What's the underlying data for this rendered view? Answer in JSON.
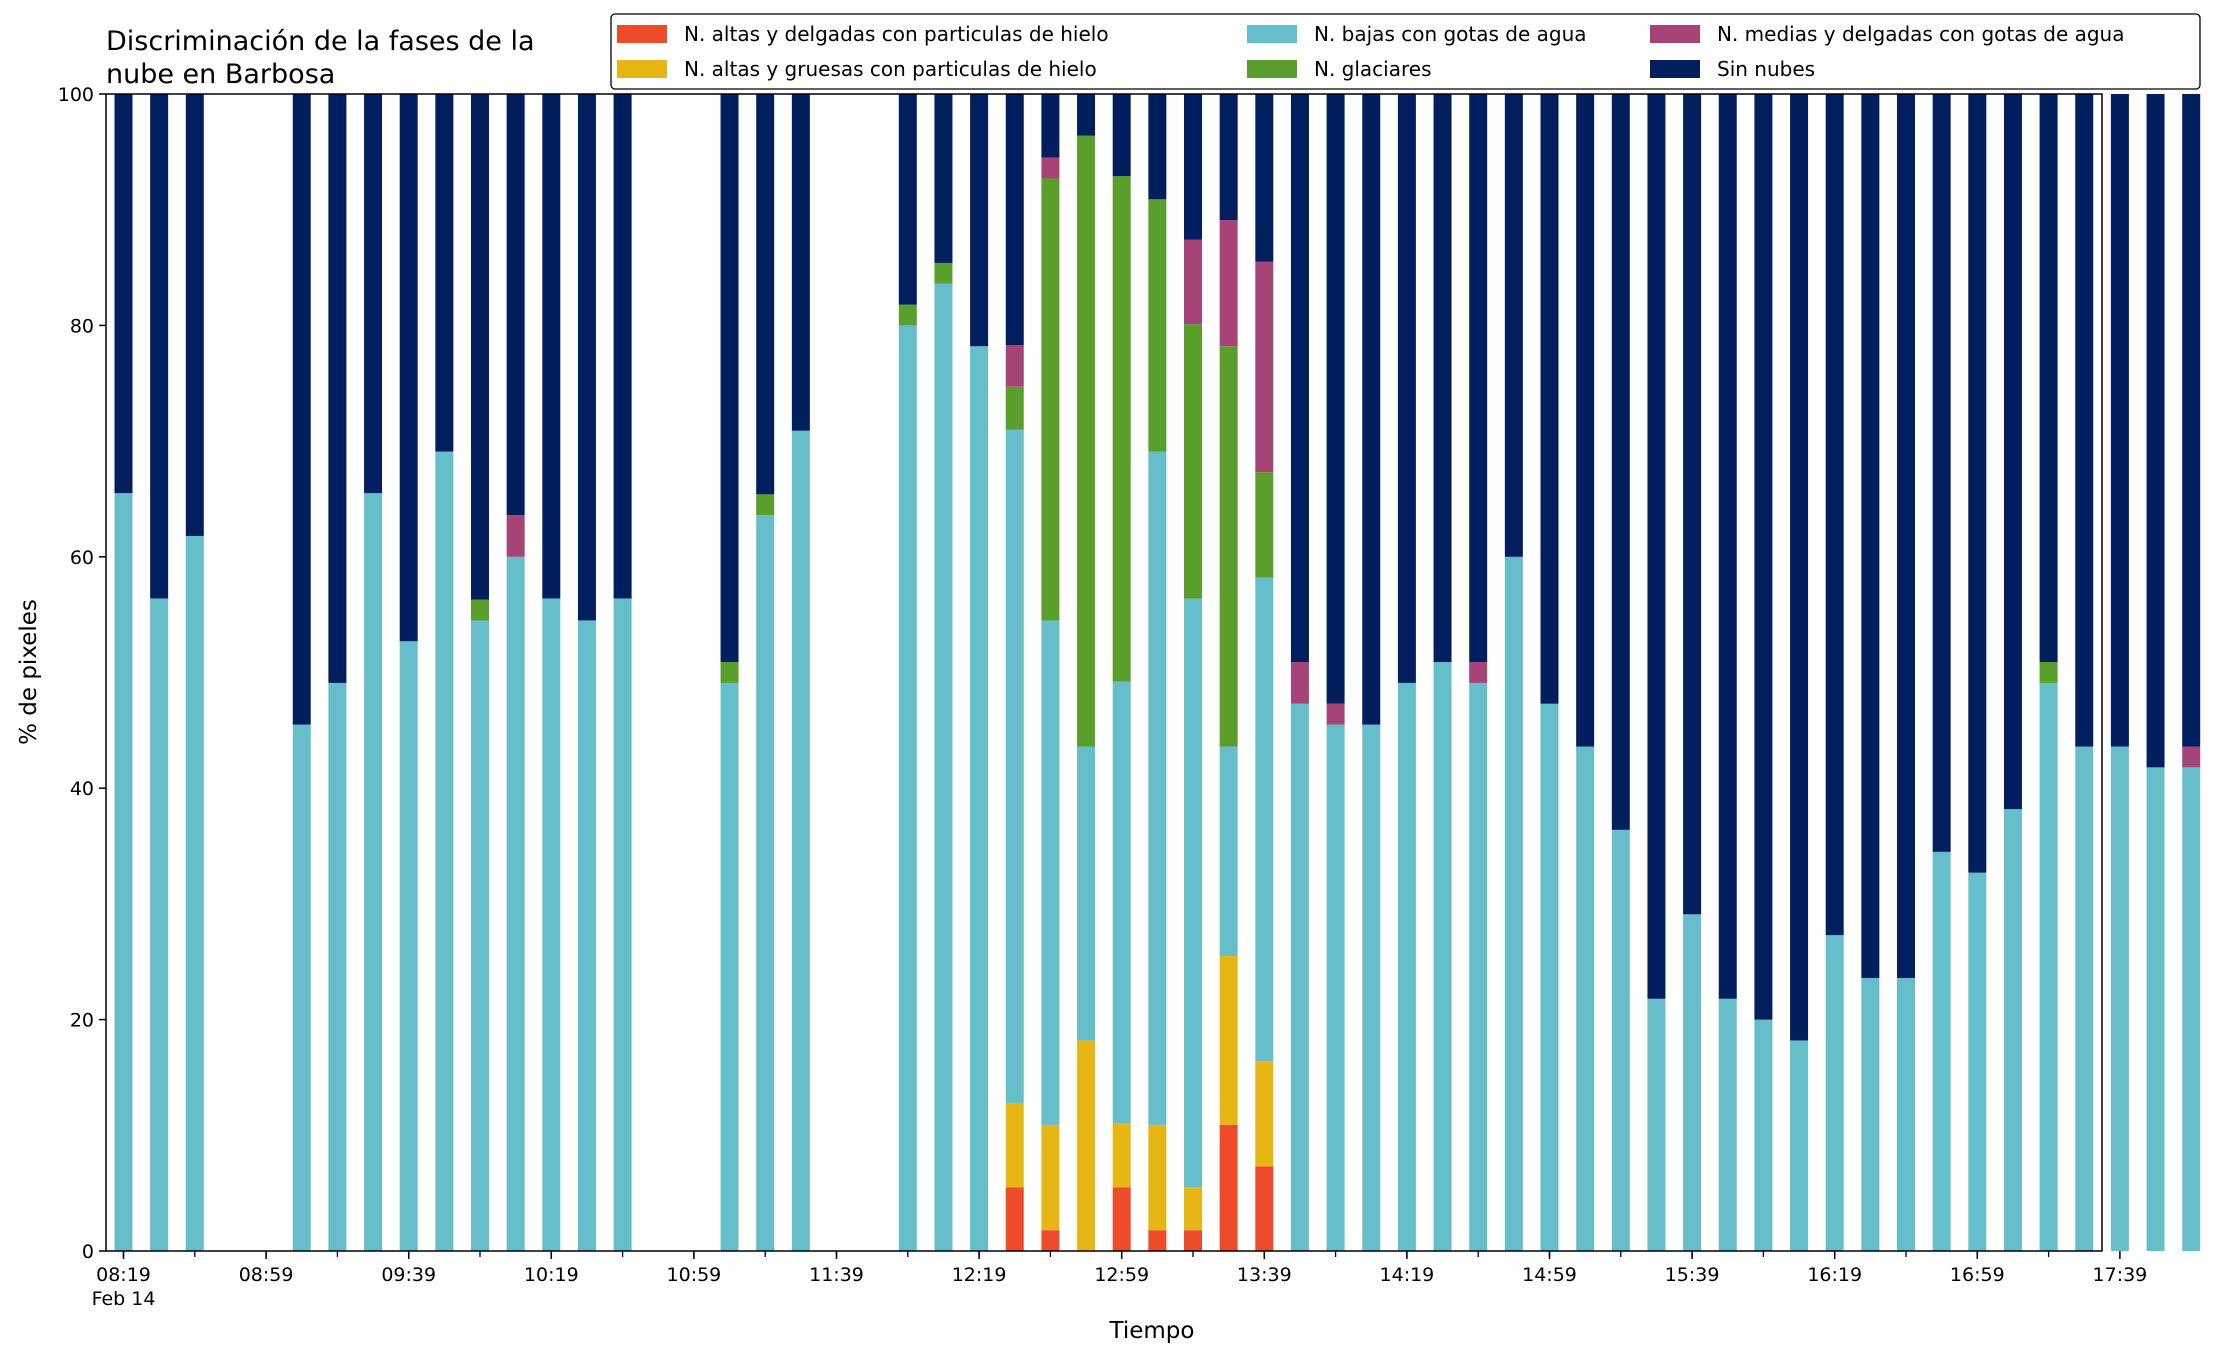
{
  "chart_data": {
    "type": "bar",
    "stacked": true,
    "title": [
      "Discriminación de la fases de la",
      "nube en Barbosa"
    ],
    "xlabel": "Tiempo",
    "ylabel": "% de pixeles",
    "ylim": [
      0,
      100
    ],
    "yticks": [
      0,
      20,
      40,
      60,
      80,
      100
    ],
    "x_start": "08:19",
    "x_step_minutes": 10,
    "x_count": 59,
    "xtick_labels": [
      "08:19",
      "08:59",
      "09:39",
      "10:19",
      "10:59",
      "11:39",
      "12:19",
      "12:59",
      "13:39",
      "14:19",
      "14:59",
      "15:39",
      "16:19",
      "16:59",
      "17:39"
    ],
    "xtick_sublabel": "Feb 14",
    "legend": {
      "placement": "top",
      "columns": 3
    },
    "series": [
      {
        "name": "N. altas y delgadas con particulas de hielo",
        "color": "#ee4b2b",
        "values": [
          0,
          0,
          0,
          0,
          0,
          0,
          0,
          0,
          0,
          0,
          0,
          0,
          0,
          0,
          0,
          0,
          0,
          0,
          0,
          0,
          0,
          0,
          0,
          0,
          0,
          5.5,
          1.8,
          0,
          5.5,
          1.8,
          1.8,
          10.9,
          7.3,
          0,
          0,
          0,
          0,
          0,
          0,
          0,
          0,
          0,
          0,
          0,
          0,
          0,
          0,
          0,
          0,
          0,
          0,
          0,
          0,
          0,
          0,
          0,
          0,
          0,
          0
        ]
      },
      {
        "name": "N. altas y gruesas con particulas de hielo",
        "color": "#e6b714",
        "values": [
          0,
          0,
          0,
          0,
          0,
          0,
          0,
          0,
          0,
          0,
          0,
          0,
          0,
          0,
          0,
          0,
          0,
          0,
          0,
          0,
          0,
          0,
          0,
          0,
          0,
          7.3,
          9.1,
          18.2,
          5.5,
          9.1,
          3.7,
          14.6,
          9.1,
          0,
          0,
          0,
          0,
          0,
          0,
          0,
          0,
          0,
          0,
          0,
          0,
          0,
          0,
          0,
          0,
          0,
          0,
          0,
          0,
          0,
          0,
          0,
          0,
          0,
          0
        ]
      },
      {
        "name": "N. bajas con gotas de agua",
        "color": "#65bec9",
        "values": [
          65.5,
          56.4,
          61.8,
          0,
          0,
          45.5,
          49.1,
          65.5,
          52.7,
          69.1,
          54.5,
          60,
          56.4,
          54.5,
          56.4,
          0,
          0,
          49.1,
          63.6,
          70.9,
          0,
          0,
          80,
          83.6,
          78.2,
          58.2,
          43.6,
          25.4,
          38.2,
          58.2,
          50.9,
          18.1,
          41.8,
          47.3,
          45.5,
          45.5,
          49.1,
          50.9,
          49.1,
          60,
          47.3,
          43.6,
          36.4,
          21.8,
          29.1,
          21.8,
          20,
          18.2,
          27.3,
          23.6,
          23.6,
          34.5,
          32.7,
          38.2,
          49.1,
          43.6,
          43.6,
          41.8,
          41.8
        ]
      },
      {
        "name": "N. glaciares",
        "color": "#5a9e2c",
        "values": [
          0,
          0,
          0,
          0,
          0,
          0,
          0,
          0,
          0,
          0,
          1.8,
          0,
          0,
          0,
          0,
          0,
          0,
          1.8,
          1.8,
          0,
          0,
          0,
          1.8,
          1.8,
          0,
          3.7,
          38.2,
          52.8,
          43.7,
          21.8,
          23.7,
          34.6,
          9.1,
          0,
          0,
          0,
          0,
          0,
          0,
          0,
          0,
          0,
          0,
          0,
          0,
          0,
          0,
          0,
          0,
          0,
          0,
          0,
          0,
          0,
          1.8,
          0,
          0,
          0,
          0
        ]
      },
      {
        "name": "N. medias y delgadas con gotas de agua",
        "color": "#a64477",
        "values": [
          0,
          0,
          0,
          0,
          0,
          0,
          0,
          0,
          0,
          0,
          0,
          3.6,
          0,
          0,
          0,
          0,
          0,
          0,
          0,
          0,
          0,
          0,
          0,
          0,
          0,
          3.6,
          1.8,
          0,
          0,
          0,
          7.3,
          10.9,
          18.2,
          3.6,
          1.8,
          0,
          0,
          0,
          1.8,
          0,
          0,
          0,
          0,
          0,
          0,
          0,
          0,
          0,
          0,
          0,
          0,
          0,
          0,
          0,
          0,
          0,
          0,
          0,
          1.8
        ]
      },
      {
        "name": "Sin nubes",
        "color": "#011f5e",
        "values": [
          34.5,
          43.6,
          38.2,
          0,
          0,
          54.5,
          50.9,
          34.5,
          47.3,
          30.9,
          43.7,
          36.4,
          43.6,
          45.5,
          43.6,
          0,
          0,
          49.1,
          34.6,
          29.1,
          0,
          0,
          18.2,
          14.6,
          21.8,
          21.7,
          5.5,
          3.6,
          7.1,
          9.1,
          12.6,
          10.9,
          14.5,
          49.1,
          52.7,
          54.5,
          50.9,
          49.1,
          49.1,
          40,
          52.7,
          56.4,
          63.6,
          78.2,
          70.9,
          78.2,
          80,
          81.8,
          72.7,
          76.4,
          76.4,
          65.5,
          67.3,
          61.8,
          49.1,
          56.4,
          56.4,
          58.2,
          56.4
        ]
      }
    ]
  }
}
